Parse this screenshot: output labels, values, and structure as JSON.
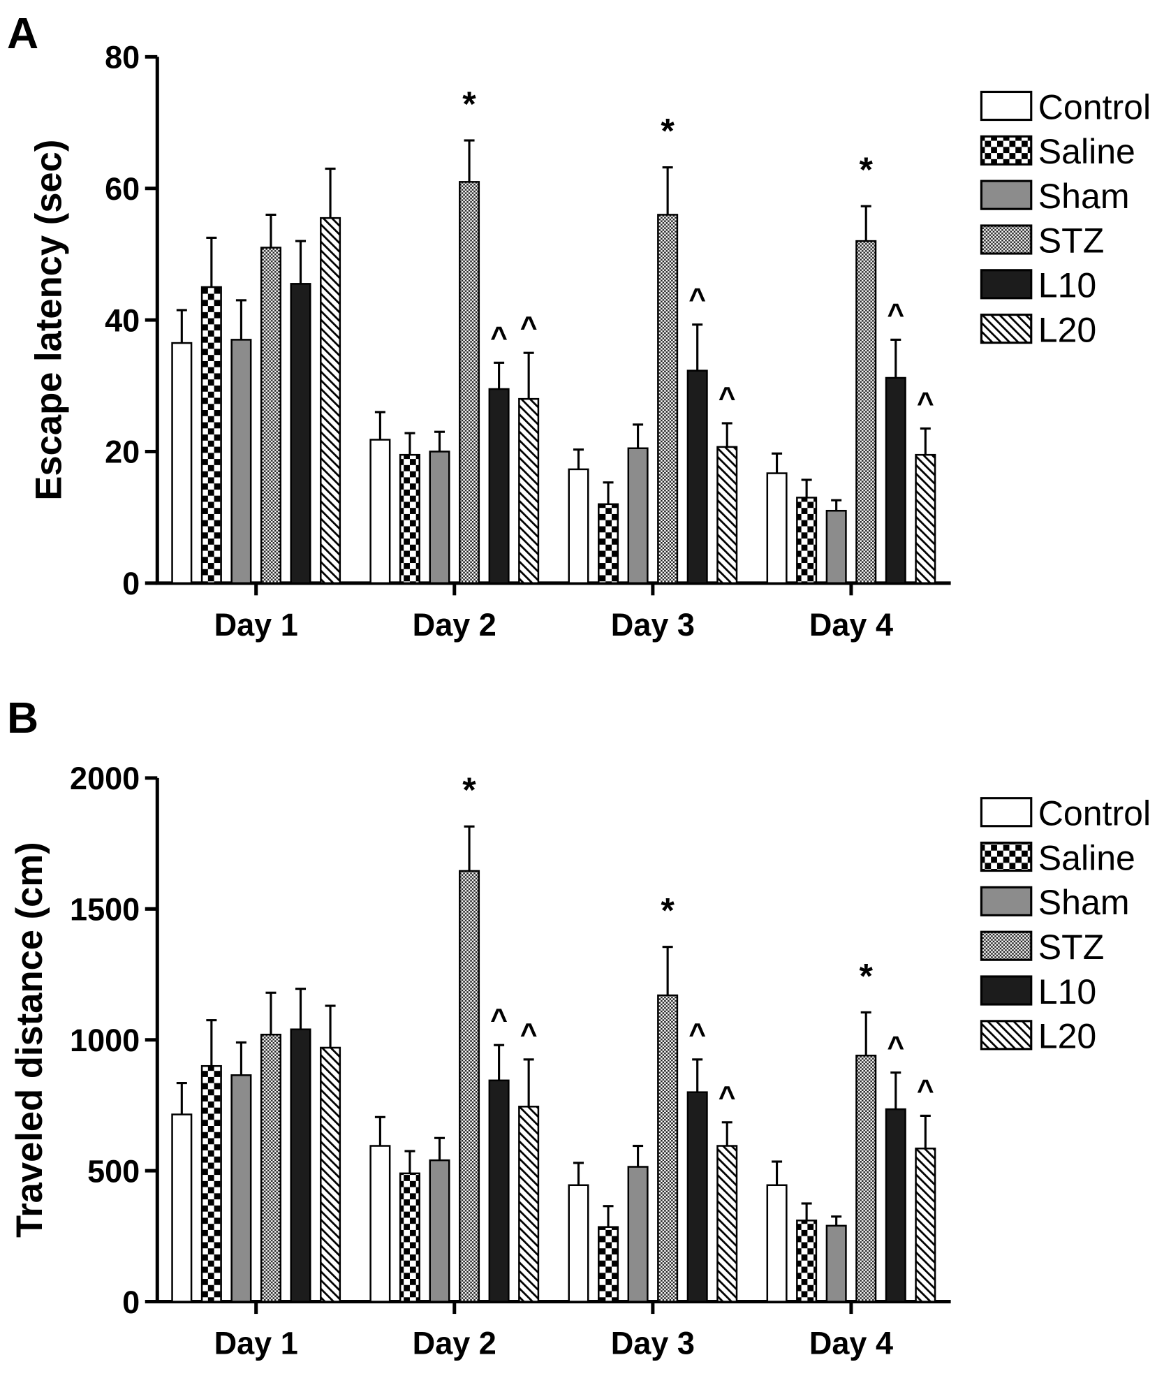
{
  "chart_data": [
    {
      "type": "bar",
      "panel": "A",
      "title": "",
      "xlabel": "",
      "ylabel": "Escape latency (sec)",
      "ylim": [
        0,
        80
      ],
      "yticks": [
        0,
        20,
        40,
        60,
        80
      ],
      "categories": [
        "Day 1",
        "Day 2",
        "Day 3",
        "Day 4"
      ],
      "legend_position": "right",
      "series": [
        {
          "name": "Control",
          "values": [
            36.5,
            21.8,
            17.3,
            16.7
          ],
          "errors": [
            5,
            4.2,
            3,
            3
          ]
        },
        {
          "name": "Saline",
          "values": [
            45,
            19.5,
            12,
            13
          ],
          "errors": [
            7.5,
            3.3,
            3.3,
            2.7
          ]
        },
        {
          "name": "Sham",
          "values": [
            37,
            20,
            20.5,
            11
          ],
          "errors": [
            6,
            3,
            3.6,
            1.6
          ]
        },
        {
          "name": "STZ",
          "values": [
            51,
            61,
            56,
            52
          ],
          "errors": [
            5,
            6.3,
            7.2,
            5.3
          ],
          "annotations": [
            "",
            "*",
            "*",
            "*"
          ]
        },
        {
          "name": "L10",
          "values": [
            45.5,
            29.5,
            32.3,
            31.2
          ],
          "errors": [
            6.5,
            4,
            7,
            5.8
          ],
          "annotations": [
            "",
            "^",
            "^",
            "^"
          ]
        },
        {
          "name": "L20",
          "values": [
            55.5,
            28,
            20.7,
            19.5
          ],
          "errors": [
            7.5,
            7,
            3.6,
            4
          ],
          "annotations": [
            "",
            "^",
            "^",
            "^"
          ]
        }
      ]
    },
    {
      "type": "bar",
      "panel": "B",
      "title": "",
      "xlabel": "",
      "ylabel": "Traveled distance (cm)",
      "ylim": [
        0,
        2000
      ],
      "yticks": [
        0,
        500,
        1000,
        1500,
        2000
      ],
      "categories": [
        "Day 1",
        "Day 2",
        "Day 3",
        "Day 4"
      ],
      "legend_position": "right",
      "series": [
        {
          "name": "Control",
          "values": [
            715,
            595,
            445,
            445
          ],
          "errors": [
            120,
            110,
            85,
            90
          ]
        },
        {
          "name": "Saline",
          "values": [
            900,
            490,
            285,
            310
          ],
          "errors": [
            175,
            85,
            80,
            65
          ]
        },
        {
          "name": "Sham",
          "values": [
            865,
            540,
            515,
            290
          ],
          "errors": [
            125,
            85,
            80,
            35
          ]
        },
        {
          "name": "STZ",
          "values": [
            1020,
            1645,
            1170,
            940
          ],
          "errors": [
            160,
            170,
            185,
            165
          ],
          "annotations": [
            "",
            "*",
            "*",
            "*"
          ]
        },
        {
          "name": "L10",
          "values": [
            1040,
            845,
            800,
            735
          ],
          "errors": [
            155,
            135,
            125,
            140
          ],
          "annotations": [
            "",
            "^",
            "^",
            "^"
          ]
        },
        {
          "name": "L20",
          "values": [
            970,
            745,
            595,
            585
          ],
          "errors": [
            160,
            180,
            90,
            125
          ],
          "annotations": [
            "",
            "^",
            "^",
            "^"
          ]
        }
      ]
    }
  ]
}
